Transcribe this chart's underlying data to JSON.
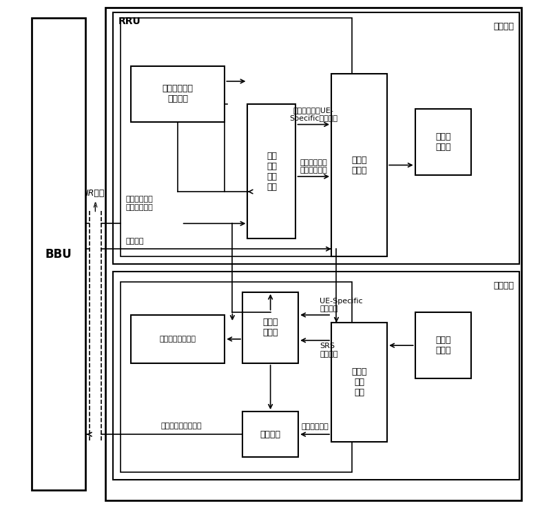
{
  "bg_color": "#ffffff",
  "fig_w": 8.0,
  "fig_h": 7.37,
  "dpi": 100,
  "labels": {
    "rru": "RRU",
    "bbu": "BBU",
    "ir": "IR接口",
    "downlink_section": "下行发送",
    "uplink_section": "上行接收",
    "local_ref": "本地参考信号\n生成模块",
    "beam_weight": "波束\n赋形\n加权\n模块",
    "resource_map": "资源映\n射模块",
    "downlink_conv": "下行变\n换模块",
    "chan_est": "信道估\n计模块",
    "weight_matrix": "加权矩阵计算模块",
    "deresource_map": "解资源\n映射\n模块",
    "uplink_conv": "上行变\n换模块",
    "equalizer": "均衡模块",
    "arrow_ue_specific": "波束赋形后的UE-\nSpecific参考信号",
    "arrow_dl_after_beam": "波束赋形后的\n下行用户数据",
    "arrow_dl_before_beam": "波束赋形前的\n下行用户数据",
    "arrow_ctrl": "控制信号",
    "arrow_ue_ref": "UE-Specific\n参考信号",
    "arrow_srs": "SRS\n参考信号",
    "arrow_ul_user": "上行用户数据",
    "arrow_ul_after_eq": "均衡后上行用户数据"
  },
  "boxes": {
    "bbu": [
      0.02,
      0.035,
      0.105,
      0.93
    ],
    "rru": [
      0.165,
      0.015,
      0.82,
      0.97
    ],
    "downlink_outer": [
      0.18,
      0.48,
      0.8,
      0.495
    ],
    "downlink_inner": [
      0.195,
      0.495,
      0.455,
      0.47
    ],
    "uplink_outer": [
      0.18,
      0.055,
      0.8,
      0.41
    ],
    "uplink_inner": [
      0.195,
      0.07,
      0.455,
      0.375
    ],
    "local_ref": [
      0.215,
      0.76,
      0.185,
      0.11
    ],
    "beam_weight": [
      0.445,
      0.53,
      0.095,
      0.265
    ],
    "resource_map": [
      0.61,
      0.495,
      0.11,
      0.36
    ],
    "downlink_conv": [
      0.775,
      0.655,
      0.11,
      0.13
    ],
    "chan_est": [
      0.435,
      0.285,
      0.11,
      0.14
    ],
    "weight_matrix": [
      0.215,
      0.285,
      0.185,
      0.095
    ],
    "deresource_map": [
      0.61,
      0.13,
      0.11,
      0.235
    ],
    "uplink_conv": [
      0.775,
      0.255,
      0.11,
      0.13
    ],
    "equalizer": [
      0.435,
      0.1,
      0.11,
      0.09
    ]
  },
  "font_sizes": {
    "rru": 10,
    "bbu": 12,
    "section": 9,
    "block": 9,
    "small_block": 8,
    "arrow": 8,
    "ir": 9
  }
}
